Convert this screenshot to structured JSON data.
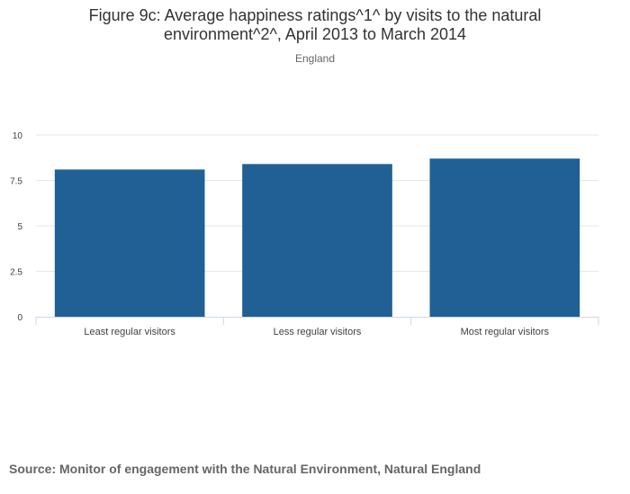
{
  "chart": {
    "title": "Figure 9c: Average happiness ratings^1^ by visits to the natural environment^2^, April 2013 to March 2014",
    "subtitle": "England"
  },
  "source": "Source: Monitor of engagement with the Natural Environment, Natural England",
  "colors": {
    "bar": "#206095",
    "grid": "#e6e6e6",
    "axis": "#ccd6eb",
    "text": "#414042"
  },
  "chart_data": {
    "type": "bar",
    "title": "Figure 9c: Average happiness ratings^1^ by visits to the natural environment^2^, April 2013 to March 2014",
    "subtitle": "England",
    "categories": [
      "Least regular visitors",
      "Less regular visitors",
      "Most regular visitors"
    ],
    "values": [
      8.1,
      8.4,
      8.7
    ],
    "ylim": [
      0,
      10
    ],
    "yticks": [
      "0",
      "2.5",
      "5",
      "7.5",
      "10"
    ],
    "xlabel": "",
    "ylabel": "",
    "grid": true
  }
}
